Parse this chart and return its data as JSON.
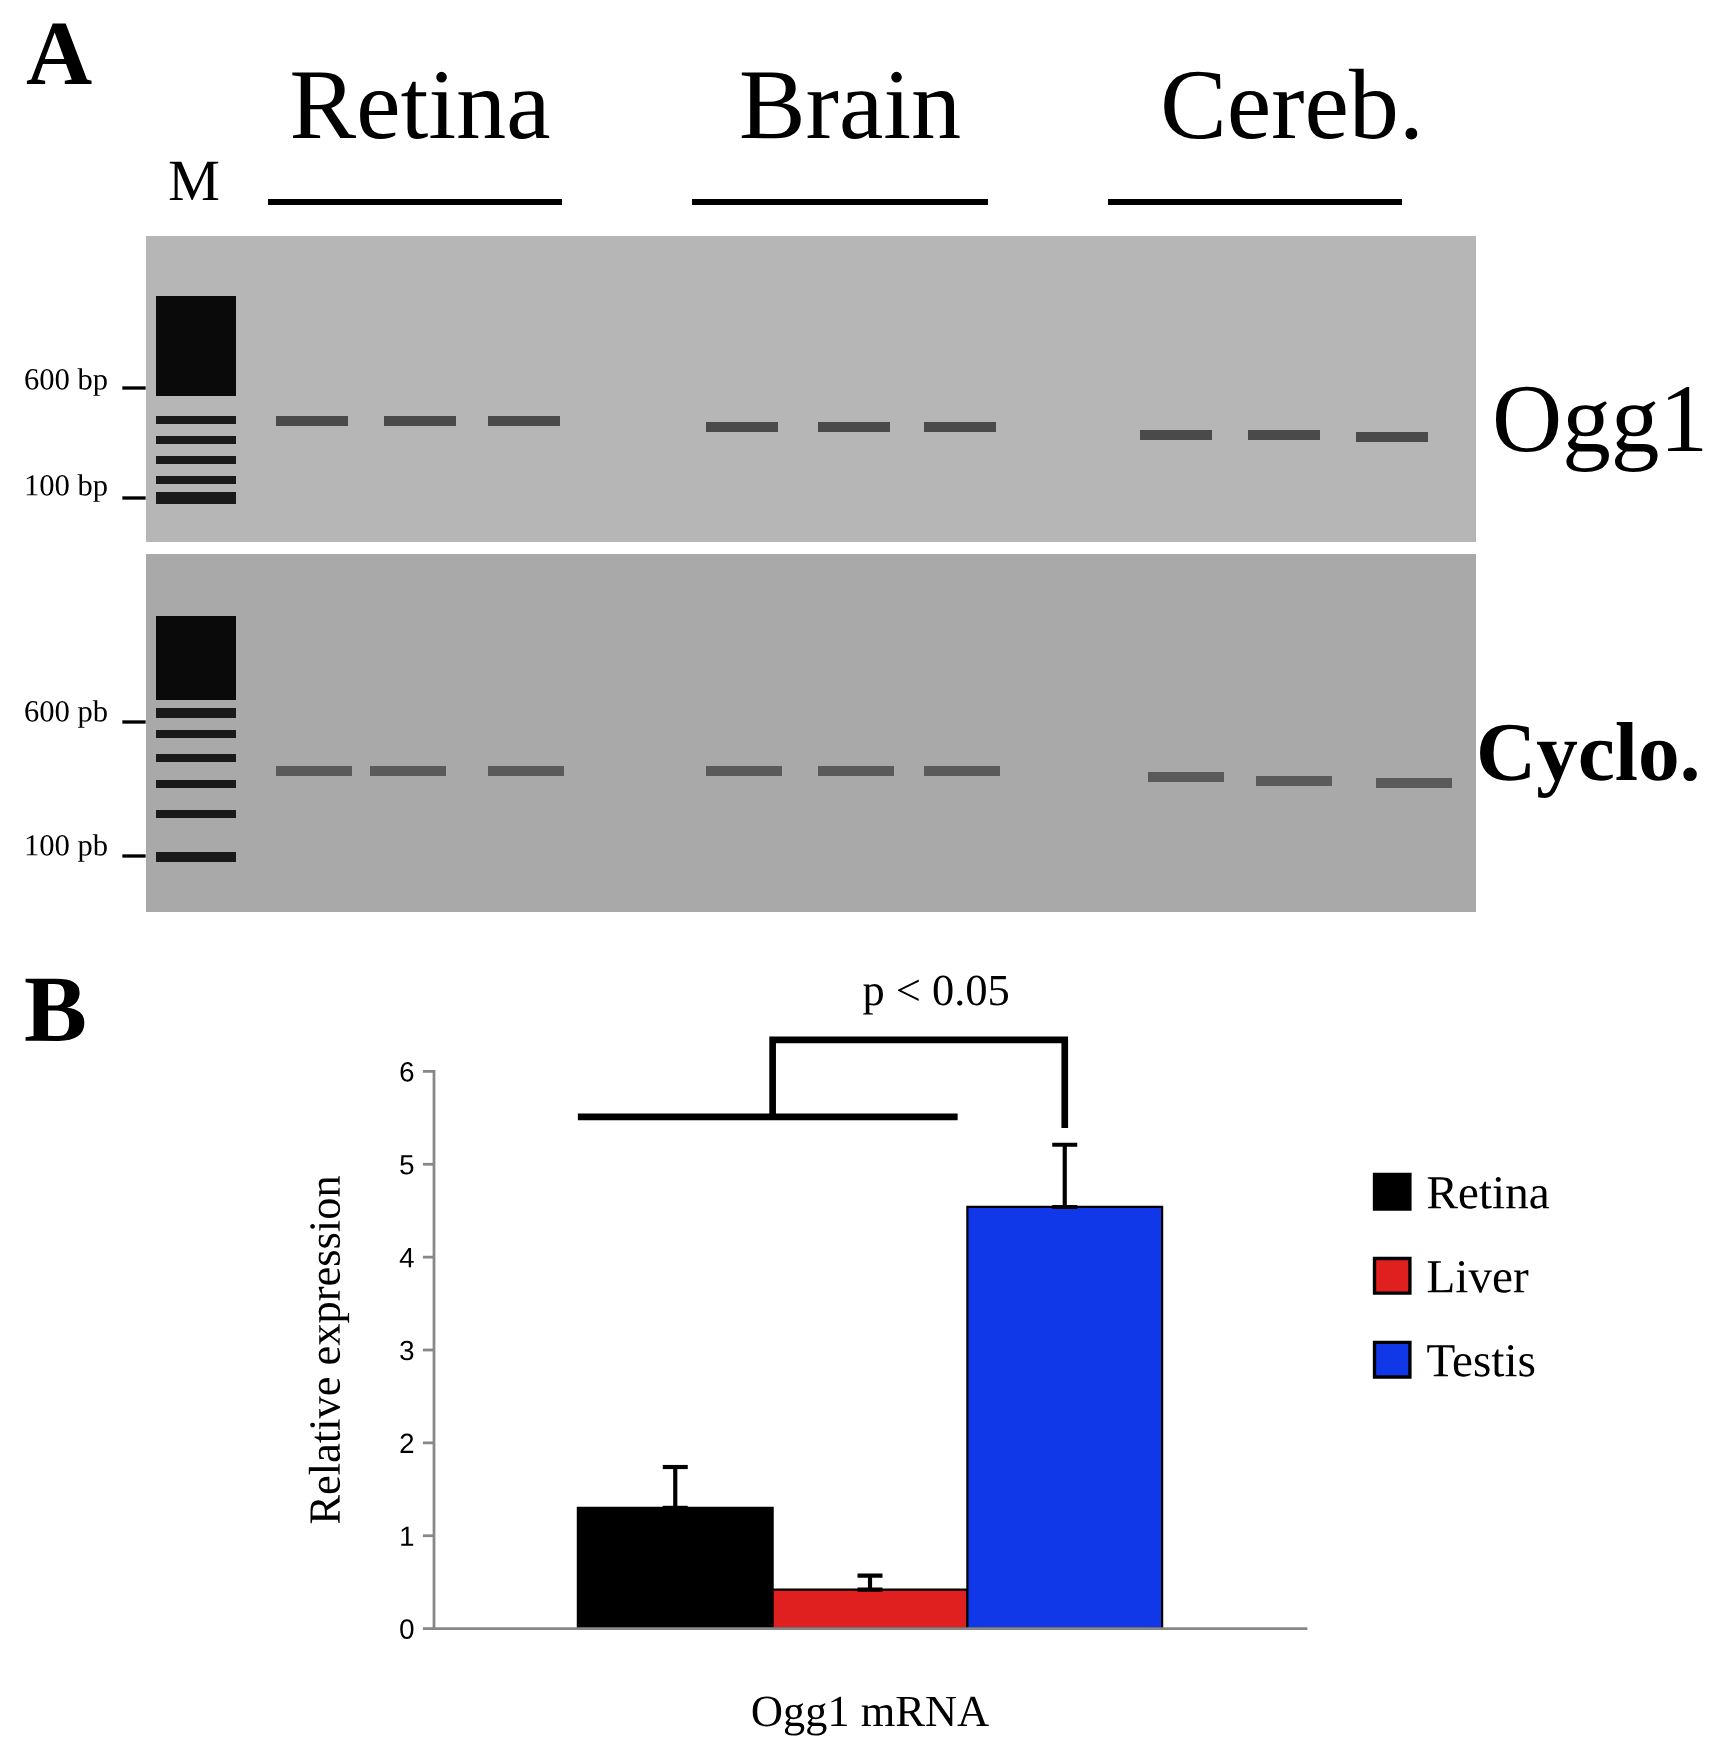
{
  "chart_data": [
    {
      "type": "other",
      "title": "A",
      "annotations": [
        "M",
        "Retina",
        "Brain",
        "Cereb.",
        "600 bp",
        "100 bp",
        "Ogg1",
        "600 pb",
        "100 pb",
        "Cyclo."
      ]
    },
    {
      "type": "bar",
      "title": "B",
      "categories": [
        "Ogg1 mRNA"
      ],
      "ylabel": "Relative expression",
      "ylim": [
        0,
        6
      ],
      "yticks": [
        0,
        1,
        2,
        3,
        4,
        5,
        6
      ],
      "grid": false,
      "legend": "right",
      "annotations": [
        "p < 0.05"
      ],
      "series": [
        {
          "name": "Retina",
          "color": "#000000",
          "values": [
            1.3
          ],
          "errors": [
            [
              1.3,
              1.74
            ]
          ]
        },
        {
          "name": "Liver",
          "color": "#e01f1f",
          "values": [
            0.42
          ],
          "errors": [
            [
              0.42,
              0.57
            ]
          ]
        },
        {
          "name": "Testis",
          "color": "#1038e8",
          "values": [
            4.54
          ],
          "errors": [
            [
              4.54,
              5.21
            ]
          ]
        }
      ]
    }
  ]
}
